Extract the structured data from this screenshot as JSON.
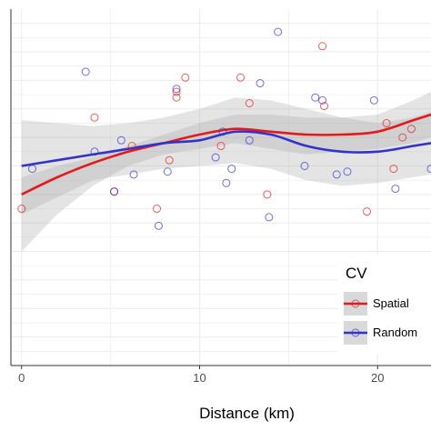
{
  "chart_data": {
    "type": "scatter",
    "title": "",
    "xlabel": "Distance (km)",
    "ylabel": "",
    "xlim": [
      -0.6,
      23.0
    ],
    "ylim": [
      -0.25,
      1.0
    ],
    "xticks": [
      0,
      10,
      20
    ],
    "grid": true,
    "legend": {
      "title": "CV",
      "position": "right",
      "entries": [
        {
          "label": "Spatial",
          "color": "#e31a1c"
        },
        {
          "label": "Random",
          "color": "#3333cc"
        }
      ]
    },
    "series": [
      {
        "name": "Spatial",
        "color": "#e31a1c",
        "points": [
          [
            0,
            0.3
          ],
          [
            4.1,
            0.62
          ],
          [
            5.2,
            0.36
          ],
          [
            6.2,
            0.52
          ],
          [
            7.6,
            0.3
          ],
          [
            8.3,
            0.47
          ],
          [
            8.7,
            0.71
          ],
          [
            8.7,
            0.69
          ],
          [
            9.2,
            0.76
          ],
          [
            11.2,
            0.52
          ],
          [
            12.3,
            0.76
          ],
          [
            12.8,
            0.67
          ],
          [
            13.8,
            0.35
          ],
          [
            16.9,
            0.87
          ],
          [
            17.0,
            0.66
          ],
          [
            19.4,
            0.29
          ],
          [
            20.5,
            0.6
          ],
          [
            20.9,
            0.44
          ],
          [
            21.4,
            0.55
          ],
          [
            21.9,
            0.58
          ]
        ],
        "smooth": [
          [
            0,
            0.35
          ],
          [
            2,
            0.41
          ],
          [
            4,
            0.46
          ],
          [
            6,
            0.5
          ],
          [
            8,
            0.53
          ],
          [
            10,
            0.56
          ],
          [
            12,
            0.58
          ],
          [
            14,
            0.57
          ],
          [
            16,
            0.56
          ],
          [
            18,
            0.56
          ],
          [
            20,
            0.57
          ],
          [
            22,
            0.61
          ],
          [
            23,
            0.63
          ]
        ],
        "band_upper": [
          [
            0,
            0.41
          ],
          [
            2,
            0.45
          ],
          [
            4,
            0.48
          ],
          [
            6,
            0.52
          ],
          [
            8,
            0.56
          ],
          [
            10,
            0.6
          ],
          [
            12,
            0.63
          ],
          [
            14,
            0.63
          ],
          [
            16,
            0.62
          ],
          [
            18,
            0.62
          ],
          [
            20,
            0.63
          ],
          [
            22,
            0.68
          ],
          [
            23,
            0.71
          ]
        ],
        "band_lower": [
          [
            0,
            0.15
          ],
          [
            2,
            0.28
          ],
          [
            4,
            0.38
          ],
          [
            6,
            0.45
          ],
          [
            8,
            0.49
          ],
          [
            10,
            0.51
          ],
          [
            12,
            0.53
          ],
          [
            14,
            0.51
          ],
          [
            16,
            0.49
          ],
          [
            18,
            0.5
          ],
          [
            20,
            0.51
          ],
          [
            22,
            0.53
          ],
          [
            23,
            0.55
          ]
        ]
      },
      {
        "name": "Random",
        "color": "#3333cc",
        "points": [
          [
            0.6,
            0.44
          ],
          [
            3.6,
            0.78
          ],
          [
            4.1,
            0.5
          ],
          [
            5.2,
            0.36
          ],
          [
            5.6,
            0.54
          ],
          [
            6.3,
            0.42
          ],
          [
            7.7,
            0.24
          ],
          [
            8.2,
            0.43
          ],
          [
            8.7,
            0.72
          ],
          [
            10.9,
            0.48
          ],
          [
            11.3,
            0.57
          ],
          [
            11.5,
            0.39
          ],
          [
            11.8,
            0.44
          ],
          [
            12.8,
            0.54
          ],
          [
            13.4,
            0.74
          ],
          [
            13.9,
            0.27
          ],
          [
            14.4,
            0.92
          ],
          [
            15.9,
            0.45
          ],
          [
            16.5,
            0.69
          ],
          [
            16.9,
            0.68
          ],
          [
            17.7,
            0.42
          ],
          [
            18.3,
            0.43
          ],
          [
            19.8,
            0.68
          ],
          [
            21.0,
            0.37
          ],
          [
            23.0,
            0.44
          ]
        ],
        "smooth": [
          [
            0,
            0.45
          ],
          [
            2,
            0.47
          ],
          [
            4,
            0.49
          ],
          [
            6,
            0.51
          ],
          [
            8,
            0.53
          ],
          [
            10,
            0.54
          ],
          [
            12,
            0.57
          ],
          [
            14,
            0.56
          ],
          [
            16,
            0.52
          ],
          [
            18,
            0.5
          ],
          [
            20,
            0.5
          ],
          [
            22,
            0.52
          ],
          [
            23,
            0.53
          ]
        ],
        "band_upper": [
          [
            0,
            0.61
          ],
          [
            2,
            0.6
          ],
          [
            4,
            0.59
          ],
          [
            6,
            0.6
          ],
          [
            8,
            0.62
          ],
          [
            10,
            0.65
          ],
          [
            12,
            0.69
          ],
          [
            14,
            0.68
          ],
          [
            16,
            0.65
          ],
          [
            18,
            0.62
          ],
          [
            20,
            0.6
          ],
          [
            22,
            0.62
          ],
          [
            23,
            0.64
          ]
        ],
        "band_lower": [
          [
            0,
            0.28
          ],
          [
            2,
            0.34
          ],
          [
            4,
            0.4
          ],
          [
            6,
            0.42
          ],
          [
            8,
            0.44
          ],
          [
            10,
            0.45
          ],
          [
            12,
            0.46
          ],
          [
            14,
            0.44
          ],
          [
            16,
            0.4
          ],
          [
            18,
            0.38
          ],
          [
            20,
            0.39
          ],
          [
            22,
            0.41
          ],
          [
            23,
            0.42
          ]
        ]
      }
    ]
  }
}
